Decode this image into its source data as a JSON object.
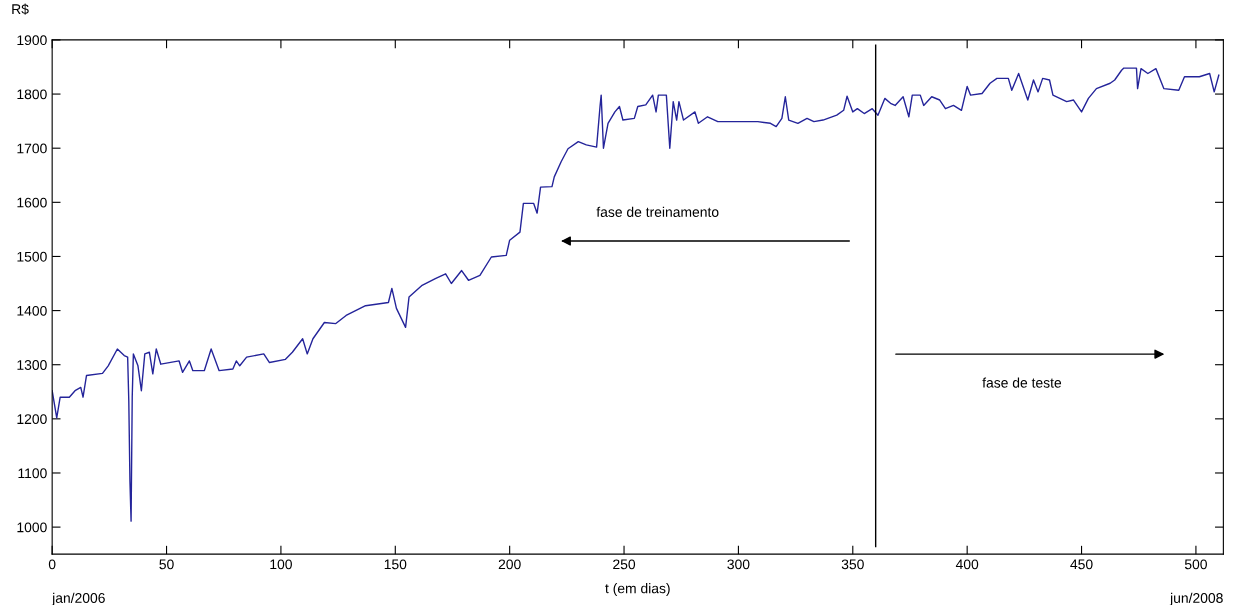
{
  "chart_data": {
    "type": "line",
    "ylabel": "R$",
    "xlabel": "t (em dias)",
    "xlim": [
      0,
      512
    ],
    "xticks": [
      0,
      50,
      100,
      150,
      200,
      250,
      300,
      350,
      400,
      450,
      500
    ],
    "ylim": [
      950,
      1900
    ],
    "yticks": [
      1000,
      1100,
      1200,
      1300,
      1400,
      1500,
      1600,
      1700,
      1800,
      1900
    ],
    "grid": false,
    "legend": false,
    "marker": "none",
    "line_style": "solid",
    "ref_lines": [
      {
        "axis": "x",
        "value": 360,
        "color": "#000000"
      }
    ],
    "annotations": [
      "jan/2006",
      "jun/2008",
      "fase de treinamento",
      "fase de teste"
    ],
    "series": [
      {
        "color": "#24249a",
        "x": [
          0,
          2,
          3.5,
          7.5,
          10,
          12.5,
          13.5,
          15,
          22,
          24.5,
          28.5,
          31.5,
          33,
          33.5,
          34,
          34.5,
          35,
          35.5,
          37.5,
          39,
          40.5,
          42.5,
          44,
          45.5,
          47.5,
          55.5,
          57,
          60,
          61.5,
          66.5,
          69.5,
          73,
          79,
          80.5,
          82,
          85,
          92.5,
          95,
          102,
          105,
          109.5,
          111.5,
          114,
          119,
          124,
          128.5,
          137,
          147,
          148.5,
          150.5,
          154.5,
          156,
          161.5,
          167.5,
          172,
          174.5,
          179,
          182,
          187,
          192,
          198.5,
          200,
          204.5,
          206,
          210.5,
          212,
          213.5,
          218.5,
          219.5,
          222.5,
          225.5,
          230,
          233.5,
          238,
          239.5,
          240,
          241,
          243,
          246,
          248,
          249.5,
          254.5,
          256,
          259.5,
          262.5,
          264,
          265,
          268.5,
          270,
          271.5,
          273,
          274,
          276,
          281,
          282.5,
          286.5,
          291,
          301,
          308.5,
          314,
          316.5,
          319,
          320.5,
          322,
          326,
          330,
          333,
          337,
          343,
          346,
          347.5,
          350,
          352,
          355,
          358.5,
          361,
          364,
          366.5,
          368.5,
          372,
          374.5,
          376,
          379.5,
          381,
          384.5,
          388,
          390.5,
          394,
          397.5,
          400,
          401.5,
          406.5,
          410,
          413,
          418,
          419.5,
          422.5,
          426.5,
          429,
          431,
          433,
          436,
          437.5,
          443.5,
          446.5,
          450,
          453,
          456.5,
          462.5,
          464.5,
          467.5,
          468.5,
          474,
          474.5,
          476,
          479,
          482.5,
          486,
          492.5,
          495,
          501.5,
          506,
          508,
          510
        ],
        "values": [
          1252,
          1202,
          1240,
          1240,
          1252,
          1258,
          1240,
          1280,
          1284,
          1298,
          1329,
          1317,
          1314,
          1233,
          1085,
          1011,
          1240,
          1320,
          1298,
          1252,
          1320,
          1323,
          1283,
          1329,
          1301,
          1307,
          1286,
          1307,
          1289,
          1289,
          1329,
          1289,
          1292,
          1307,
          1298,
          1314,
          1320,
          1304,
          1310,
          1323,
          1348,
          1320,
          1348,
          1378,
          1376,
          1391,
          1409,
          1415,
          1441,
          1404,
          1369,
          1425,
          1446,
          1459,
          1468,
          1450,
          1474,
          1456,
          1465,
          1499,
          1502,
          1530,
          1545,
          1598,
          1598,
          1580,
          1628,
          1629,
          1647,
          1675,
          1699,
          1712,
          1706,
          1702,
          1777,
          1798,
          1700,
          1746,
          1767,
          1777,
          1752,
          1755,
          1777,
          1780,
          1798,
          1767,
          1798,
          1798,
          1700,
          1786,
          1752,
          1786,
          1752,
          1767,
          1746,
          1758,
          1749,
          1749,
          1749,
          1746,
          1740,
          1755,
          1795,
          1752,
          1746,
          1755,
          1749,
          1752,
          1761,
          1770,
          1796,
          1767,
          1773,
          1764,
          1773,
          1761,
          1792,
          1783,
          1779,
          1795,
          1758,
          1798,
          1798,
          1779,
          1795,
          1789,
          1773,
          1779,
          1770,
          1814,
          1798,
          1801,
          1820,
          1829,
          1829,
          1807,
          1838,
          1789,
          1826,
          1804,
          1829,
          1826,
          1798,
          1786,
          1789,
          1767,
          1792,
          1810,
          1820,
          1826,
          1844,
          1848,
          1848,
          1810,
          1847,
          1838,
          1847,
          1810,
          1807,
          1832,
          1832,
          1838,
          1804,
          1835
        ]
      }
    ]
  }
}
